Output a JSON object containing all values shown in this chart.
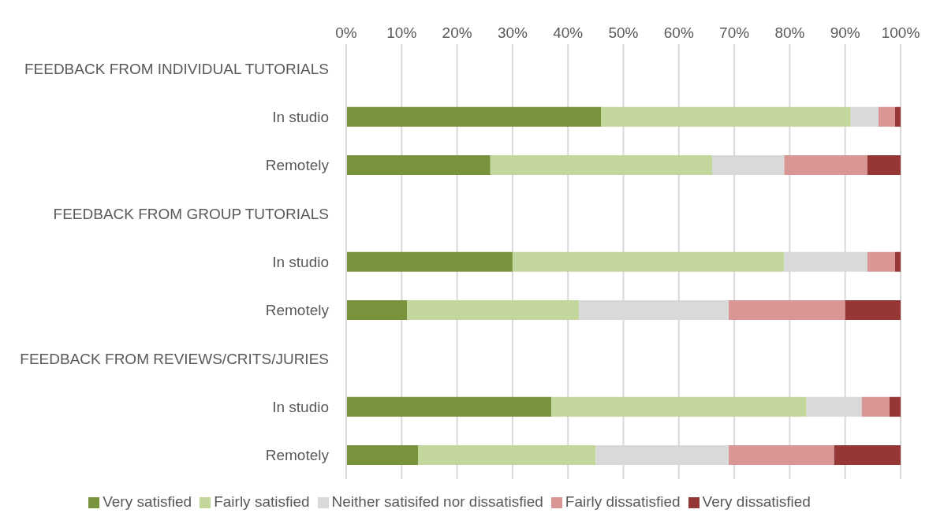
{
  "chart_data": {
    "type": "bar",
    "orientation": "horizontal",
    "stacked": true,
    "categories": [
      "FEEDBACK FROM INDIVIDUAL TUTORIALS",
      "In studio",
      "Remotely",
      "FEEDBACK FROM GROUP TUTORIALS",
      "In studio",
      "Remotely",
      "FEEDBACK FROM REVIEWS/CRITS/JURIES",
      "In studio",
      "Remotely"
    ],
    "series": [
      {
        "name": "Very satisfied",
        "color": "#77933c",
        "values": [
          null,
          46,
          26,
          null,
          30,
          11,
          null,
          37,
          13
        ]
      },
      {
        "name": "Fairly satisfied",
        "color": "#c3d69b",
        "values": [
          null,
          45,
          40,
          null,
          49,
          31,
          null,
          46,
          32
        ]
      },
      {
        "name": "Neither satisifed nor dissatisfied",
        "color": "#d9d9d9",
        "values": [
          null,
          5,
          13,
          null,
          15,
          27,
          null,
          10,
          24
        ]
      },
      {
        "name": "Fairly dissatisfied",
        "color": "#d99694",
        "values": [
          null,
          3,
          15,
          null,
          5,
          21,
          null,
          5,
          19
        ]
      },
      {
        "name": "Very dissatisfied",
        "color": "#953735",
        "values": [
          null,
          1,
          6,
          null,
          1,
          10,
          null,
          2,
          12
        ]
      }
    ],
    "xlim": [
      0,
      100
    ],
    "xticks": [
      {
        "value": 0,
        "label": "0%"
      },
      {
        "value": 10,
        "label": "10%"
      },
      {
        "value": 20,
        "label": "20%"
      },
      {
        "value": 30,
        "label": "30%"
      },
      {
        "value": 40,
        "label": "40%"
      },
      {
        "value": 50,
        "label": "50%"
      },
      {
        "value": 60,
        "label": "60%"
      },
      {
        "value": 70,
        "label": "70%"
      },
      {
        "value": 80,
        "label": "80%"
      },
      {
        "value": 90,
        "label": "90%"
      },
      {
        "value": 100,
        "label": "100%"
      }
    ],
    "grid": "x",
    "legend": "bottom"
  }
}
